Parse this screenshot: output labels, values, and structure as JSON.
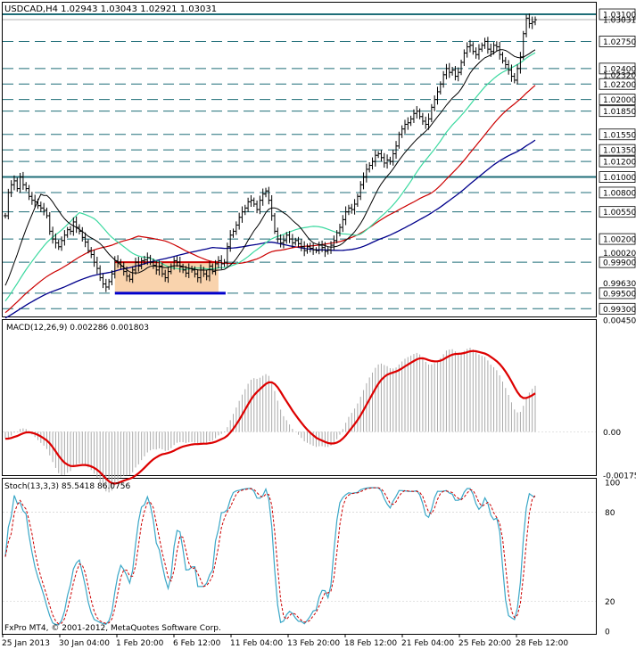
{
  "header": {
    "title": "USDCAD,H4  1.02943 1.03043 1.02921 1.03031",
    "copyright": "FxPro MT4, © 2001-2012, MetaQuotes Software Corp."
  },
  "colors": {
    "background": "#ffffff",
    "frame": "#000000",
    "level_line": "#1f6e78",
    "ma_black": "#000000",
    "ma_aqua": "#3cd9a0",
    "ma_red": "#cc0000",
    "ma_blue": "#00008b",
    "macd_signal": "#dd0000",
    "macd_hist": "#a9a9a9",
    "stoch_main": "#3aa7c7",
    "stoch_signal": "#cc0000",
    "range_box_fill": "#f9d3ad",
    "range_box_top": "#cc0000",
    "range_box_bottom": "#0000cc"
  },
  "chart_data": [
    {
      "type": "candlestick",
      "name": "price",
      "symbol": "USDCAD",
      "timeframe": "H4",
      "ylim": [
        0.992,
        1.0325
      ],
      "price_labels": [
        "1.03100",
        "1.03031",
        "1.02750",
        "1.02400",
        "1.02320",
        "1.02200",
        "1.02000",
        "1.01850",
        "1.01550",
        "1.01350",
        "1.01200",
        "1.01000",
        "1.00800",
        "1.00550",
        "1.00200",
        "1.00020",
        "0.99900",
        "0.99630",
        "0.99500",
        "0.99300"
      ],
      "thick_levels": [
        1.031,
        1.01
      ],
      "dashed_levels": [
        1.0275,
        1.024,
        1.022,
        1.02,
        1.0185,
        1.0155,
        1.0135,
        1.012,
        1.008,
        1.0055,
        1.002,
        0.999,
        0.995,
        0.993
      ],
      "current_price": 1.03031,
      "range_box": {
        "top": 0.999,
        "bottom": 0.995,
        "start_bar": 37,
        "end_bar": 72
      },
      "closes": [
        1.005,
        1.008,
        1.009,
        1.0095,
        1.0085,
        1.01,
        1.009,
        1.0085,
        1.0075,
        1.007,
        1.0068,
        1.0063,
        1.006,
        1.0057,
        1.005,
        1.003,
        1.002,
        1.0015,
        1.001,
        1.0018,
        1.0025,
        1.0032,
        1.003,
        1.0042,
        1.0035,
        1.003,
        1.0022,
        1.0016,
        1.0005,
        1.0,
        0.999,
        0.9982,
        0.997,
        0.9962,
        0.9958,
        0.9965,
        0.9975,
        0.9992,
        0.999,
        0.9985,
        0.9978,
        0.9972,
        0.9968,
        0.998,
        0.999,
        0.9985,
        0.9992,
        0.9993,
        0.9996,
        0.999,
        0.9986,
        0.998,
        0.9985,
        0.9975,
        0.997,
        0.9978,
        0.9985,
        0.9992,
        0.999,
        0.9984,
        0.998,
        0.9976,
        0.9982,
        0.998,
        0.9975,
        0.997,
        0.998,
        0.9975,
        0.9972,
        0.9985,
        0.9978,
        0.9988,
        0.9992,
        0.9988,
        0.999,
        1.001,
        1.0025,
        1.003,
        1.0038,
        1.0048,
        1.0055,
        1.006,
        1.0068,
        1.007,
        1.0065,
        1.0058,
        1.007,
        1.0078,
        1.0082,
        1.007,
        1.005,
        1.003,
        1.002,
        1.0015,
        1.0018,
        1.0025,
        1.002,
        1.0015,
        1.0018,
        1.0014,
        1.001,
        1.0005,
        1.001,
        1.0008,
        1.0006,
        1.0005,
        1.0012,
        1.0009,
        1.0004,
        1.0006,
        1.0012,
        1.0018,
        1.0028,
        1.0035,
        1.0045,
        1.0055,
        1.006,
        1.0058,
        1.0065,
        1.0075,
        1.009,
        1.01,
        1.011,
        1.0115,
        1.012,
        1.0128,
        1.013,
        1.0125,
        1.0118,
        1.0122,
        1.012,
        1.013,
        1.014,
        1.0155,
        1.0162,
        1.0168,
        1.017,
        1.0175,
        1.0182,
        1.0185,
        1.0178,
        1.0172,
        1.0168,
        1.0175,
        1.019,
        1.02,
        1.021,
        1.022,
        1.0232,
        1.024,
        1.0235,
        1.0238,
        1.023,
        1.0235,
        1.0248,
        1.026,
        1.0268,
        1.027,
        1.0262,
        1.0258,
        1.0265,
        1.027,
        1.0275,
        1.0265,
        1.0262,
        1.027,
        1.0268,
        1.0258,
        1.025,
        1.0245,
        1.0238,
        1.023,
        1.0225,
        1.024,
        1.0255,
        1.0285,
        1.0305,
        1.0298,
        1.03,
        1.0303
      ],
      "x_tick_labels": [
        "25 Jan 2013",
        "30 Jan 04:00",
        "1 Feb 20:00",
        "6 Feb 12:00",
        "11 Feb 04:00",
        "13 Feb 20:00",
        "18 Feb 12:00",
        "21 Feb 04:00",
        "25 Feb 20:00",
        "28 Feb 12:00"
      ],
      "moving_averages": [
        "black",
        "aqua",
        "red",
        "blue"
      ]
    },
    {
      "type": "line",
      "name": "MACD",
      "title": "MACD(12,26,9) 0.002286 0.001803",
      "ylim": [
        -0.00175,
        0.004509
      ],
      "tick_labels": [
        "0.004509",
        "0.00",
        "-0.00175"
      ],
      "series": [
        "histogram",
        "signal"
      ]
    },
    {
      "type": "line",
      "name": "Stochastic",
      "title": "Stoch(13,3,3) 85.5418 86.0756",
      "ylim": [
        0,
        100
      ],
      "tick_labels": [
        "100",
        "80",
        "20",
        "0"
      ],
      "series": [
        "main",
        "signal"
      ]
    }
  ]
}
